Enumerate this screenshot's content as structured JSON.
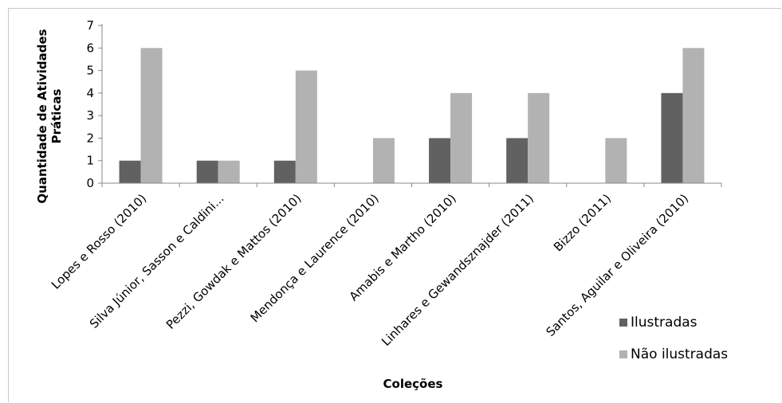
{
  "chart_data": {
    "type": "bar",
    "title": "",
    "xlabel": "Coleções",
    "ylabel_lines": [
      "Quantidade de Atividades",
      "Práticas"
    ],
    "ylim": [
      0,
      7
    ],
    "yticks": [
      0,
      1,
      2,
      3,
      4,
      5,
      6,
      7
    ],
    "categories": [
      "Lopes e Rosso (2010)",
      "Silva Júnior, Sasson e Caldini...",
      "Pezzi, Gowdak e Mattos (2010)",
      "Mendonça e Laurence (2010)",
      "Amabis e Martho (2010)",
      "Linhares e Gewandsznajder (2011)",
      "Bizzo (2011)",
      "Santos, Aguilar e Oliveira (2010)"
    ],
    "series": [
      {
        "name": "Ilustradas",
        "color": "#616161",
        "values": [
          1,
          1,
          1,
          0,
          2,
          2,
          0,
          4
        ]
      },
      {
        "name": "Não ilustradas",
        "color": "#b2b2b2",
        "values": [
          6,
          1,
          5,
          2,
          4,
          4,
          2,
          6
        ]
      }
    ],
    "grid": false,
    "legend_position": "bottom-right"
  }
}
